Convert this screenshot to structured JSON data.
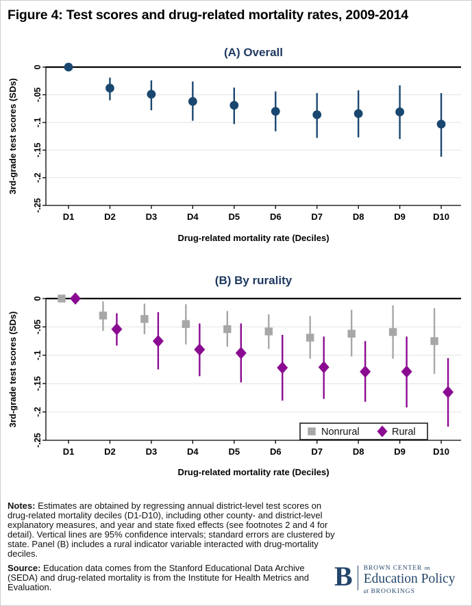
{
  "figure": {
    "title": "Figure 4: Test scores and drug-related mortality rates, 2009-2014"
  },
  "colors": {
    "navy": "#1a476f",
    "gray": "#a7a7a7",
    "purple": "#8a0b92",
    "panel_title_navy": "#1f3a60",
    "grid": "#e2e2e2",
    "axis_black": "#000000",
    "logo_navy": "#24466b",
    "legend_border": "#1a1a1a"
  },
  "chart_data": [
    {
      "type": "scatter",
      "title": "(A) Overall",
      "xlabel": "Drug-related mortality rate (Deciles)",
      "ylabel": "3rd-grade test scores (SDs)",
      "categories": [
        "D1",
        "D2",
        "D3",
        "D4",
        "D5",
        "D6",
        "D7",
        "D8",
        "D9",
        "D10"
      ],
      "ylim": [
        0,
        -0.25
      ],
      "grid": true,
      "legend": false,
      "yticks": [
        {
          "v": 0,
          "label": "0"
        },
        {
          "v": -0.05,
          "label": "-.05"
        },
        {
          "v": -0.1,
          "label": "-.1"
        },
        {
          "v": -0.15,
          "label": "-.15"
        },
        {
          "v": -0.2,
          "label": "-.2"
        },
        {
          "v": -0.25,
          "label": "-.25"
        }
      ],
      "note": "vertical lines are 95% confidence intervals",
      "series": [
        {
          "name": "Overall",
          "marker": "circle",
          "color": "#1a476f",
          "offset": 0,
          "values": [
            0,
            -0.038,
            -0.049,
            -0.062,
            -0.069,
            -0.08,
            -0.086,
            -0.084,
            -0.081,
            -0.103
          ],
          "ci_high": [
            null,
            -0.019,
            -0.024,
            -0.026,
            -0.037,
            -0.044,
            -0.047,
            -0.042,
            -0.033,
            -0.047
          ],
          "ci_low": [
            null,
            -0.06,
            -0.078,
            -0.097,
            -0.103,
            -0.116,
            -0.128,
            -0.127,
            -0.13,
            -0.162
          ]
        }
      ]
    },
    {
      "type": "scatter",
      "title": "(B) By rurality",
      "xlabel": "Drug-related mortality rate (Deciles)",
      "ylabel": "3rd-grade test scores (SDs)",
      "categories": [
        "D1",
        "D2",
        "D3",
        "D4",
        "D5",
        "D6",
        "D7",
        "D8",
        "D9",
        "D10"
      ],
      "ylim": [
        0,
        -0.25
      ],
      "grid": true,
      "legend": true,
      "legend_position": "bottom-right",
      "yticks": [
        {
          "v": 0,
          "label": "0"
        },
        {
          "v": -0.05,
          "label": "-.05"
        },
        {
          "v": -0.1,
          "label": "-.1"
        },
        {
          "v": -0.15,
          "label": "-.15"
        },
        {
          "v": -0.2,
          "label": "-.2"
        },
        {
          "v": -0.25,
          "label": "-.25"
        }
      ],
      "series": [
        {
          "name": "Nonrural",
          "marker": "square",
          "color": "#a7a7a7",
          "offset": -10,
          "values": [
            0,
            -0.03,
            -0.036,
            -0.045,
            -0.054,
            -0.058,
            -0.069,
            -0.062,
            -0.059,
            -0.075
          ],
          "ci_high": [
            null,
            -0.005,
            -0.009,
            -0.01,
            -0.022,
            -0.028,
            -0.031,
            -0.02,
            -0.012,
            -0.017
          ],
          "ci_low": [
            null,
            -0.057,
            -0.063,
            -0.081,
            -0.085,
            -0.089,
            -0.106,
            -0.102,
            -0.106,
            -0.133
          ]
        },
        {
          "name": "Rural",
          "marker": "diamond",
          "color": "#8a0b92",
          "offset": 10,
          "values": [
            0,
            -0.054,
            -0.075,
            -0.09,
            -0.096,
            -0.122,
            -0.121,
            -0.129,
            -0.129,
            -0.165
          ],
          "ci_high": [
            null,
            -0.026,
            -0.024,
            -0.044,
            -0.044,
            -0.064,
            -0.067,
            -0.075,
            -0.067,
            -0.105
          ],
          "ci_low": [
            null,
            -0.083,
            -0.125,
            -0.137,
            -0.148,
            -0.18,
            -0.177,
            -0.182,
            -0.192,
            -0.226
          ]
        }
      ]
    }
  ],
  "notes": {
    "label": "Notes:",
    "text": "Estimates are obtained by regressing annual district-level test scores on drug-related mortality deciles (D1-D10), including other county- and district-level explanatory measures, and year and state fixed effects (see footnotes 2 and 4 for detail). Vertical lines are 95% confidence intervals; standard errors are clustered by state. Panel (B) includes a rural indicator variable interacted with drug-mortality deciles."
  },
  "source": {
    "label": "Source:",
    "text": "Education data comes from the Stanford Educational Data Archive (SEDA) and drug-related mortality is from the Institute for Health Metrics and Evaluation."
  },
  "logo": {
    "b": "B",
    "center": "BROWN CENTER",
    "on": "on",
    "name": "Education Policy",
    "at": "at",
    "brookings": "BROOKINGS"
  }
}
